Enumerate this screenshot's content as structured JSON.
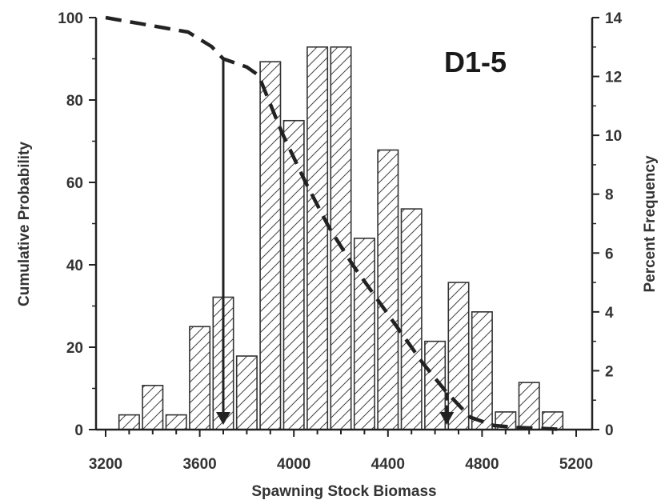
{
  "chart_data": {
    "type": "bar",
    "panel_label": "D1-5",
    "xlabel": "Spawning Stock Biomass",
    "ylabel_left": "Cumulative Probability",
    "ylabel_right": "Percent Frequency",
    "xlim": [
      3200,
      5200
    ],
    "ylim_left": [
      0,
      100
    ],
    "ylim_right": [
      0,
      14
    ],
    "x_ticks": [
      3200,
      3600,
      4000,
      4400,
      4800,
      5200
    ],
    "y_left_ticks": [
      0,
      20,
      40,
      60,
      80,
      100
    ],
    "y_right_ticks": [
      0,
      2,
      4,
      6,
      8,
      10,
      12,
      14
    ],
    "grid": false,
    "bar_series": {
      "name": "Percent Frequency",
      "axis": "right",
      "bin_width": 100,
      "x": [
        3300,
        3400,
        3500,
        3600,
        3700,
        3800,
        3900,
        4000,
        4100,
        4200,
        4300,
        4400,
        4500,
        4600,
        4700,
        4800,
        4900,
        5000,
        5100
      ],
      "values": [
        0.5,
        1.5,
        0.5,
        3.5,
        4.5,
        2.5,
        12.5,
        10.5,
        13.0,
        13.0,
        6.5,
        9.5,
        7.5,
        3.0,
        5.0,
        4.0,
        0.6,
        1.6,
        0.6
      ]
    },
    "line_series": {
      "name": "Cumulative Probability",
      "axis": "left",
      "style": "dashed",
      "x": [
        3200,
        3250,
        3350,
        3450,
        3550,
        3650,
        3700,
        3800,
        3850,
        3950,
        4050,
        4150,
        4250,
        4350,
        4450,
        4550,
        4650,
        4750,
        4850,
        4950,
        5050,
        5150
      ],
      "y": [
        100,
        99.5,
        98.5,
        97.5,
        96.5,
        93,
        90,
        88,
        86,
        72,
        60,
        49,
        40,
        32,
        24,
        16,
        9,
        3,
        1,
        0.5,
        0.3,
        0
      ]
    },
    "arrows": [
      {
        "x": 3700,
        "from": 90,
        "to": 0,
        "style": "solid"
      },
      {
        "x": 4650,
        "from": 9,
        "to": 0,
        "style": "dashed"
      }
    ]
  }
}
